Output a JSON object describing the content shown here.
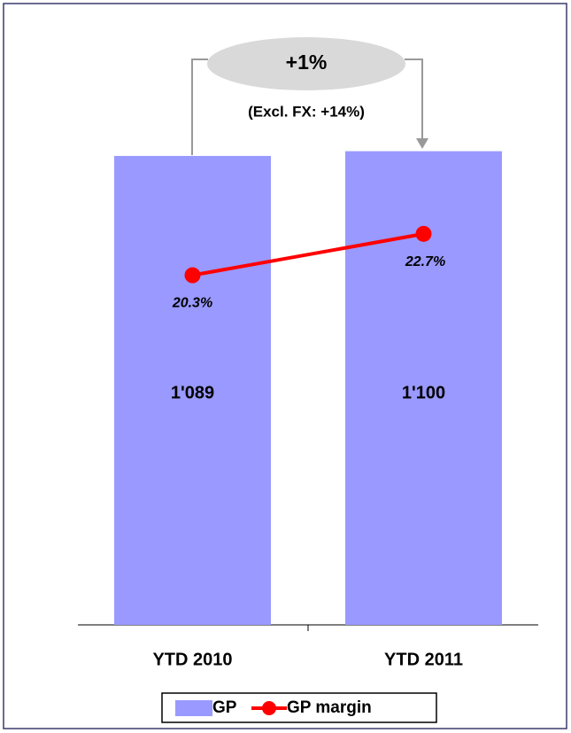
{
  "chart_data": {
    "type": "bar",
    "categories": [
      "YTD 2010",
      "YTD 2011"
    ],
    "series": [
      {
        "name": "GP",
        "type": "bar",
        "color": "#9999ff",
        "values": [
          1089,
          1100
        ],
        "value_labels": [
          "1'089",
          "1'100"
        ]
      },
      {
        "name": "GP margin",
        "type": "line",
        "axis": "y2",
        "color": "#ff0000",
        "values": [
          20.3,
          22.7
        ],
        "value_labels": [
          "20.3%",
          "22.7%"
        ]
      }
    ],
    "ylim": [
      0,
      1200
    ],
    "y2lim": [
      0,
      30
    ],
    "annotations": [
      "+1%",
      "(Excl. FX: +14%)"
    ],
    "legend": "bottom"
  }
}
